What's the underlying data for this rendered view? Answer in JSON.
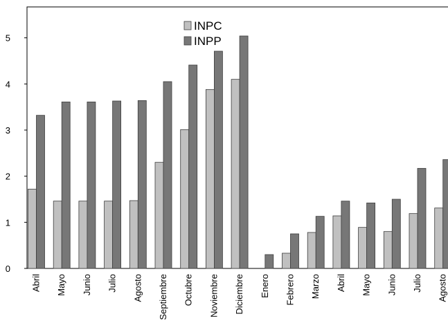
{
  "chart_data": {
    "type": "bar",
    "categories": [
      "Abril",
      "Mayo",
      "Junio",
      "Julio",
      "Agosto",
      "Septiembre",
      "Octubre",
      "Noviembre",
      "Diciembre",
      "Enero",
      "Febrero",
      "Marzo",
      "Abril",
      "Mayo",
      "Junio",
      "Julio",
      "Agosto"
    ],
    "series": [
      {
        "name": "INPC",
        "color": "#c0c0c0",
        "values": [
          1.72,
          1.46,
          1.46,
          1.46,
          1.47,
          2.3,
          3.01,
          3.88,
          4.1,
          null,
          0.33,
          0.78,
          1.14,
          0.89,
          0.8,
          1.19,
          1.31
        ]
      },
      {
        "name": "INPP",
        "color": "#777777",
        "values": [
          3.32,
          3.61,
          3.61,
          3.63,
          3.64,
          4.05,
          4.41,
          4.71,
          5.04,
          0.3,
          0.75,
          1.13,
          1.46,
          1.42,
          1.5,
          2.17,
          2.36
        ]
      }
    ],
    "yticks": [
      0,
      1,
      2,
      3,
      4,
      5
    ],
    "ylim": [
      0,
      5.67
    ],
    "legend_position": "top-center",
    "grid": false
  }
}
